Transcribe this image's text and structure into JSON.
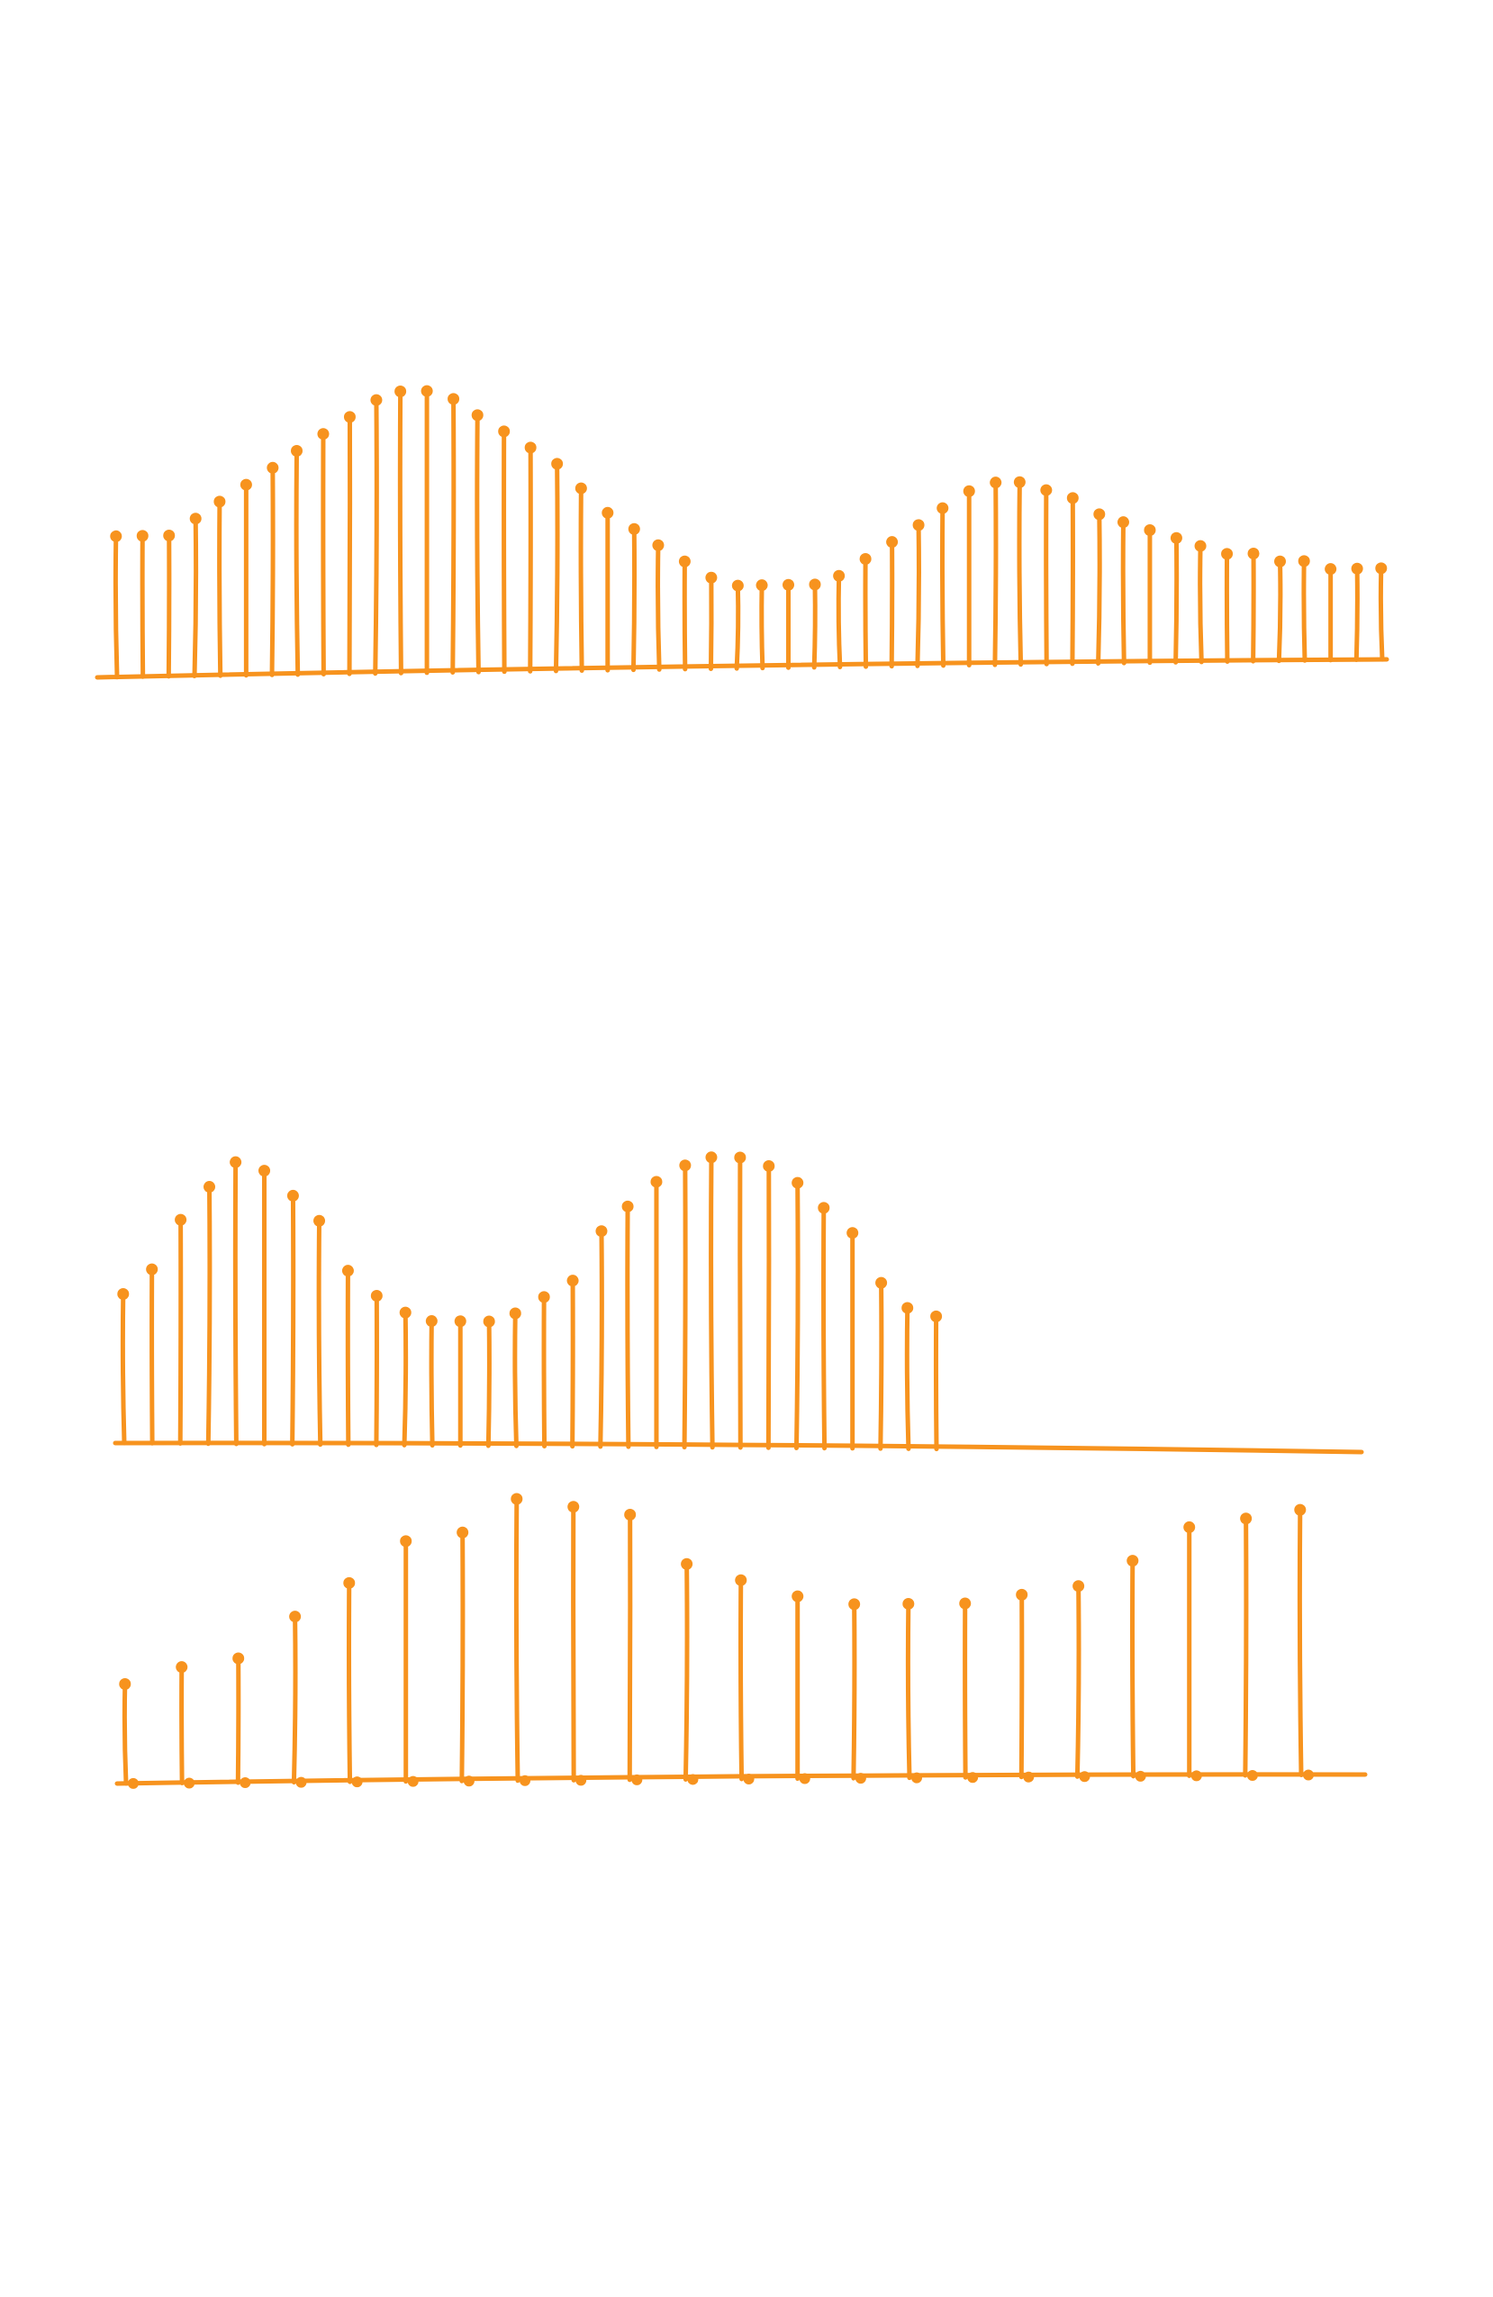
{
  "colors": {
    "ink": "#f7931e",
    "background": "#ffffff"
  },
  "chart_data": [
    {
      "type": "stem",
      "grid": false,
      "legend": "none",
      "x": [
        1,
        2,
        3,
        4,
        5,
        6,
        7,
        8,
        9,
        10,
        11,
        12,
        13,
        14,
        15,
        16,
        17,
        18,
        19,
        20,
        21,
        22,
        23,
        24,
        25,
        26,
        27,
        28,
        29,
        30,
        31,
        32,
        33,
        34,
        35,
        36,
        37,
        38,
        39,
        40,
        41,
        42,
        43,
        44,
        45,
        46,
        47,
        48,
        49,
        50
      ],
      "values": [
        17,
        17,
        17,
        19,
        21,
        23,
        25,
        27,
        29,
        31,
        33,
        34,
        34,
        33,
        31,
        29,
        27,
        25,
        22,
        19,
        17,
        15,
        13,
        11,
        10,
        10,
        10,
        10,
        11,
        13,
        15,
        17,
        19,
        21,
        22,
        22,
        21,
        20,
        18,
        17,
        16,
        15,
        14,
        13,
        13,
        12,
        12,
        11,
        11,
        11
      ],
      "ylim": [
        0,
        36
      ]
    },
    {
      "type": "stem",
      "grid": false,
      "legend": "none",
      "x": [
        1,
        2,
        3,
        4,
        5,
        6,
        7,
        8,
        9,
        10,
        11,
        12,
        13,
        14,
        15,
        16,
        17,
        18,
        19,
        20,
        21,
        22,
        23,
        24,
        25,
        26,
        27,
        28,
        29,
        30
      ],
      "values": [
        18,
        21,
        27,
        31,
        34,
        33,
        30,
        27,
        21,
        18,
        16,
        15,
        15,
        15,
        16,
        18,
        20,
        26,
        29,
        32,
        34,
        35,
        35,
        34,
        32,
        29,
        26,
        20,
        17,
        16
      ],
      "ylim": [
        0,
        36
      ]
    },
    {
      "type": "stem",
      "grid": false,
      "legend": "none",
      "x": [
        1,
        2,
        3,
        4,
        5,
        6,
        7,
        8,
        9,
        10,
        11,
        12,
        13,
        14,
        15,
        16,
        17,
        18,
        19,
        20,
        21,
        22
      ],
      "values": [
        12,
        14,
        15,
        20,
        24,
        29,
        30,
        34,
        33,
        32,
        26,
        24,
        22,
        21,
        21,
        21,
        22,
        23,
        26,
        30,
        31,
        32
      ],
      "ylim": [
        0,
        36
      ]
    }
  ]
}
